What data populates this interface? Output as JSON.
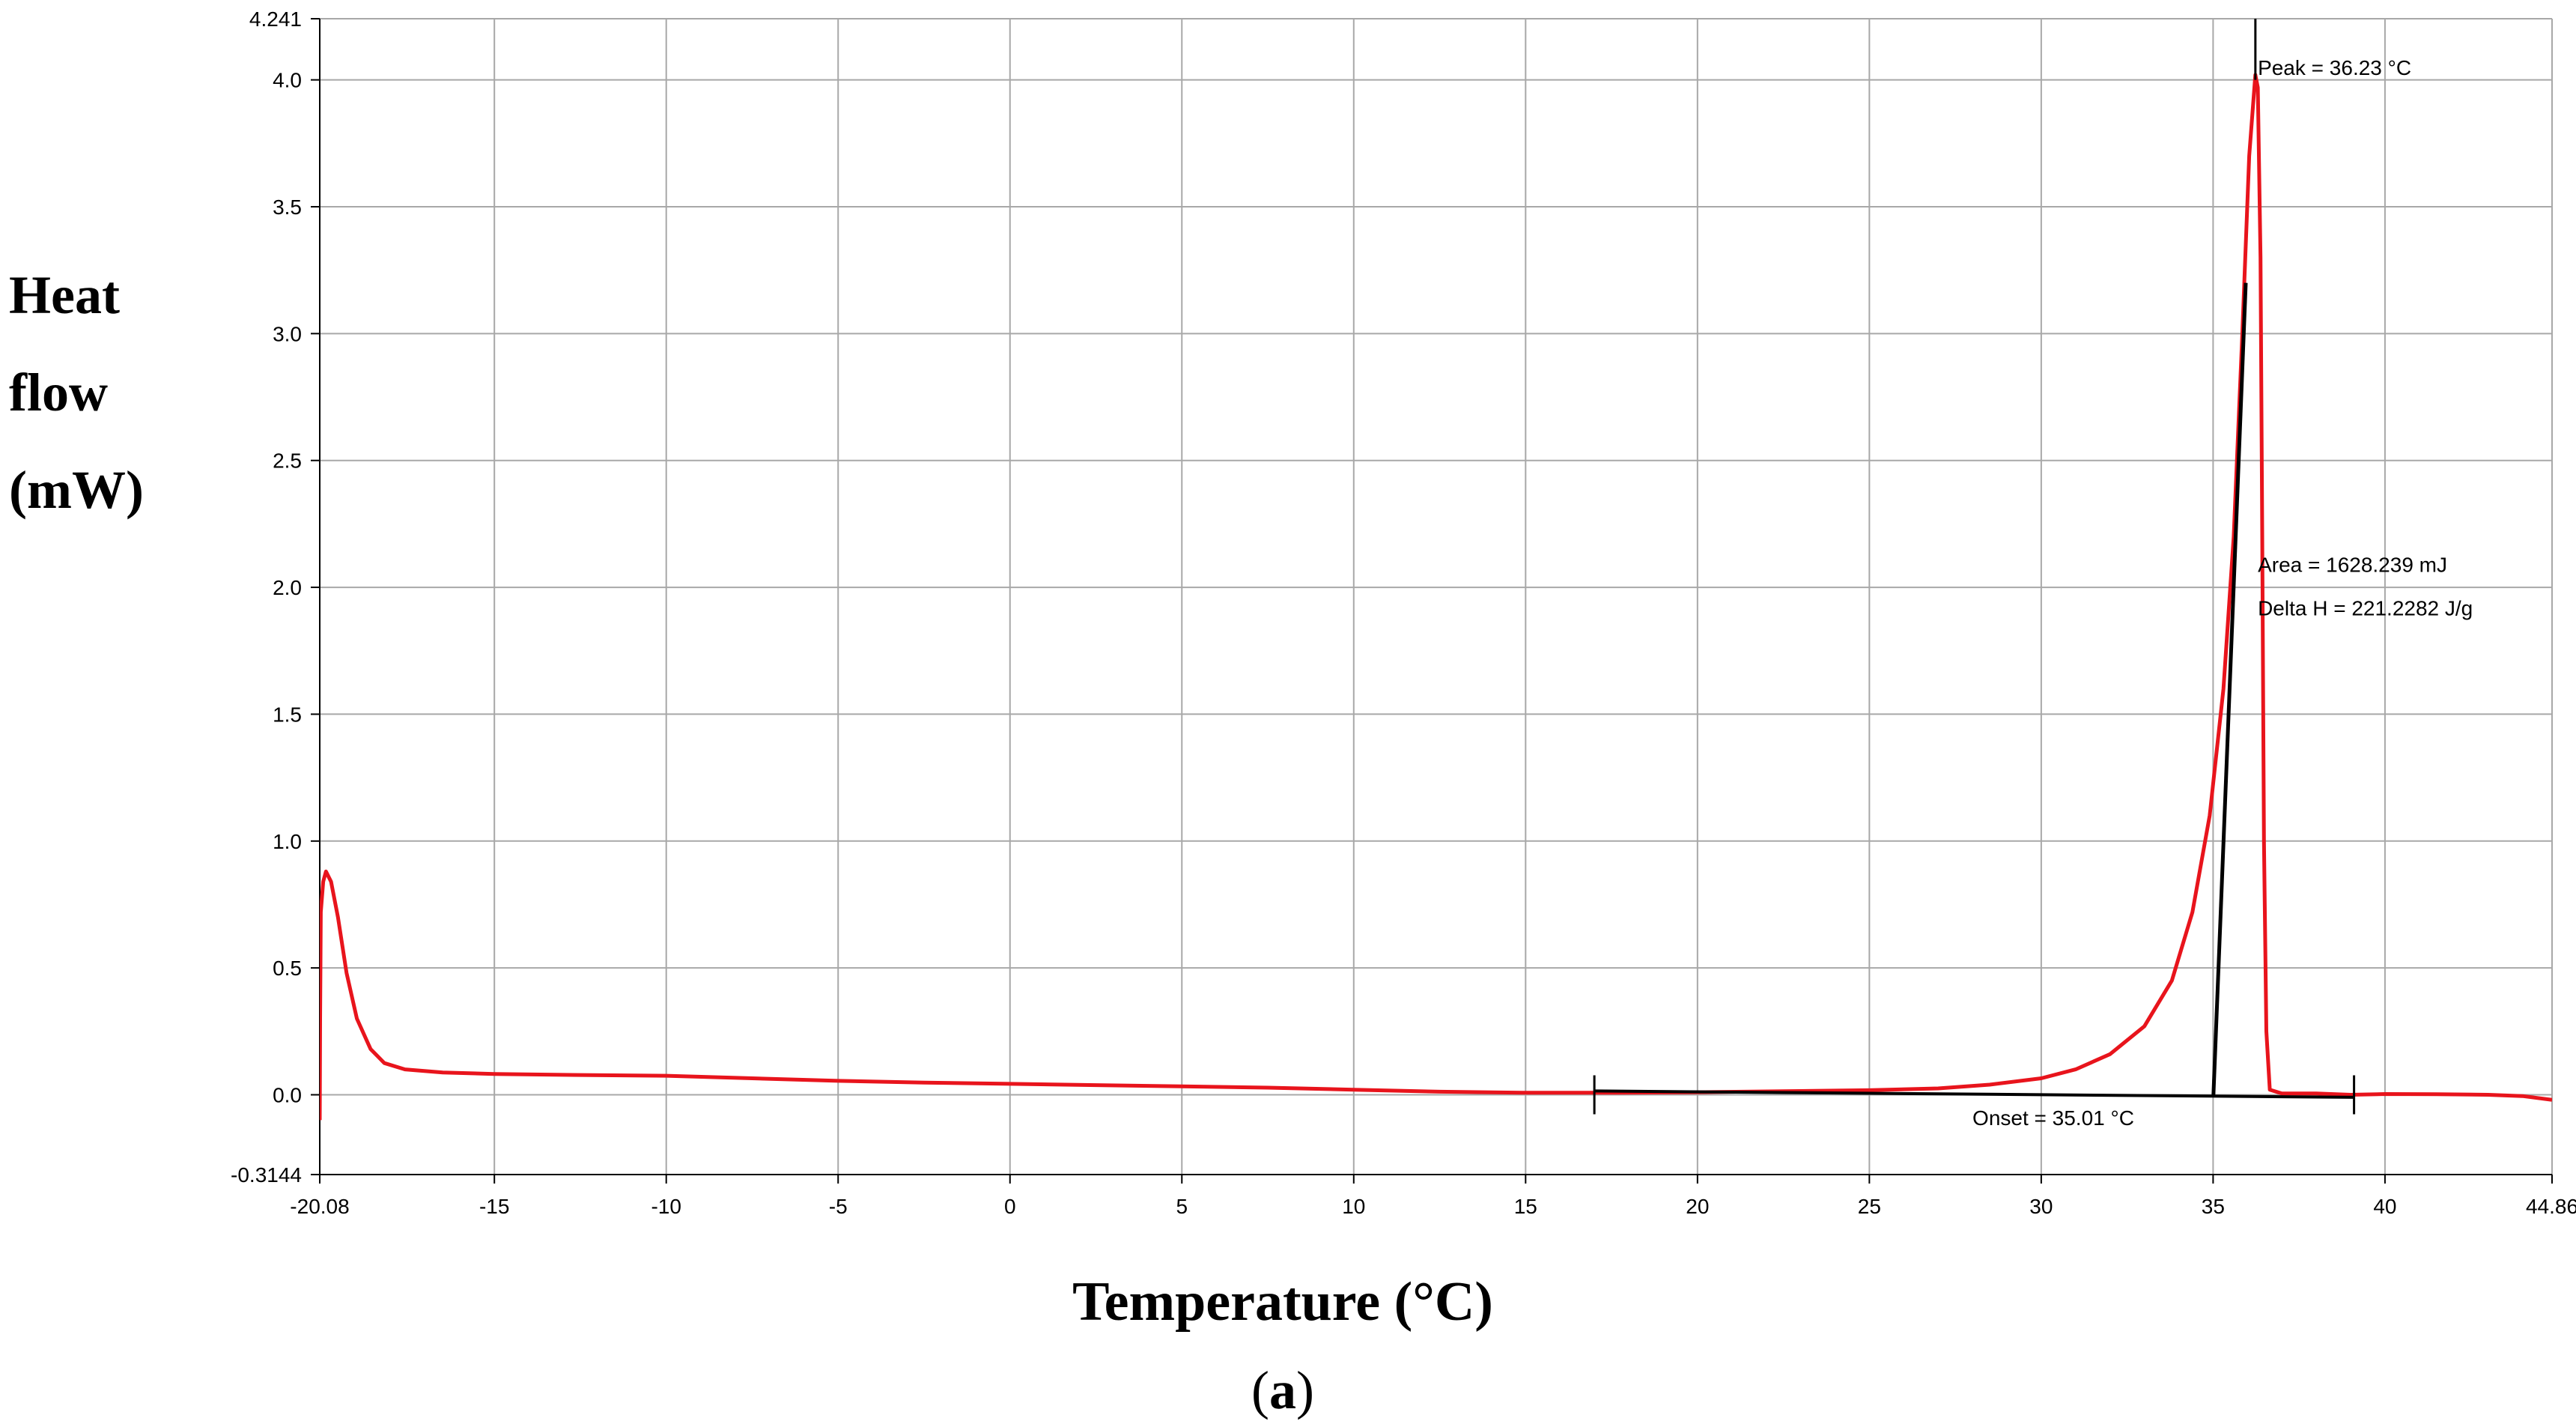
{
  "chart_data": {
    "type": "line",
    "title": "",
    "xlabel": "Temperature (°C)",
    "ylabel_lines": [
      "Heat",
      "flow",
      "(mW)"
    ],
    "caption": {
      "open": "(",
      "letter": "a",
      "close": ")"
    },
    "xlim": [
      -20.08,
      44.86
    ],
    "ylim": [
      -0.3144,
      4.241
    ],
    "grid": true,
    "x_ticks": [
      -20.08,
      -15,
      -10,
      -5,
      0,
      5,
      10,
      15,
      20,
      25,
      30,
      35,
      40,
      44.86
    ],
    "x_tick_labels": [
      "-20.08",
      "-15",
      "-10",
      "-5",
      "0",
      "5",
      "10",
      "15",
      "20",
      "25",
      "30",
      "35",
      "40",
      "44.86"
    ],
    "y_ticks": [
      -0.3144,
      0.0,
      0.5,
      1.0,
      1.5,
      2.0,
      2.5,
      3.0,
      3.5,
      4.0,
      4.241
    ],
    "y_tick_labels": [
      "-0.3144",
      "0.0",
      "0.5",
      "1.0",
      "1.5",
      "2.0",
      "2.5",
      "3.0",
      "3.5",
      "4.0",
      "4.241"
    ],
    "colors": {
      "curve": "#e8141c",
      "analysis": "#000000",
      "grid": "#a8a8a8",
      "axis": "#000000"
    },
    "series": [
      {
        "name": "",
        "color": "#e8141c",
        "points": [
          [
            -20.08,
            -0.1
          ],
          [
            -20.07,
            0.3
          ],
          [
            -20.05,
            0.72
          ],
          [
            -19.98,
            0.84
          ],
          [
            -19.9,
            0.88
          ],
          [
            -19.75,
            0.84
          ],
          [
            -19.55,
            0.7
          ],
          [
            -19.3,
            0.48
          ],
          [
            -19.0,
            0.3
          ],
          [
            -18.6,
            0.18
          ],
          [
            -18.2,
            0.125
          ],
          [
            -17.6,
            0.1
          ],
          [
            -16.5,
            0.088
          ],
          [
            -15.0,
            0.082
          ],
          [
            -12.5,
            0.078
          ],
          [
            -10.0,
            0.075
          ],
          [
            -7.5,
            0.065
          ],
          [
            -5.0,
            0.055
          ],
          [
            -2.5,
            0.048
          ],
          [
            0.0,
            0.043
          ],
          [
            2.5,
            0.038
          ],
          [
            5.0,
            0.033
          ],
          [
            7.5,
            0.028
          ],
          [
            10.0,
            0.02
          ],
          [
            12.5,
            0.012
          ],
          [
            15.0,
            0.008
          ],
          [
            17.5,
            0.008
          ],
          [
            20.0,
            0.01
          ],
          [
            22.5,
            0.014
          ],
          [
            25.0,
            0.018
          ],
          [
            27.0,
            0.025
          ],
          [
            28.5,
            0.04
          ],
          [
            30.0,
            0.065
          ],
          [
            31.0,
            0.1
          ],
          [
            32.0,
            0.16
          ],
          [
            33.0,
            0.27
          ],
          [
            33.8,
            0.45
          ],
          [
            34.4,
            0.72
          ],
          [
            34.9,
            1.1
          ],
          [
            35.3,
            1.6
          ],
          [
            35.6,
            2.2
          ],
          [
            35.85,
            3.0
          ],
          [
            36.05,
            3.7
          ],
          [
            36.23,
            4.02
          ],
          [
            36.3,
            3.97
          ],
          [
            36.38,
            3.3
          ],
          [
            36.43,
            2.2
          ],
          [
            36.48,
            1.0
          ],
          [
            36.55,
            0.25
          ],
          [
            36.65,
            0.02
          ],
          [
            37.0,
            0.005
          ],
          [
            38.0,
            0.005
          ],
          [
            39.0,
            0.0
          ],
          [
            40.0,
            0.003
          ],
          [
            41.5,
            0.002
          ],
          [
            43.0,
            0.0
          ],
          [
            44.0,
            -0.005
          ],
          [
            44.86,
            -0.02
          ]
        ]
      }
    ],
    "analysis": {
      "baseline": {
        "x1": 17.0,
        "y1": 0.015,
        "x2": 39.1,
        "y2": -0.01
      },
      "baseline_markers": [
        17.0,
        39.1
      ],
      "tangent": {
        "x1": 35.01,
        "y1": 0.0,
        "x2": 35.95,
        "y2": 3.2
      },
      "onset_drop": {
        "x": 35.01,
        "y1": 0.0,
        "y2": 0.06
      },
      "peak_marker": {
        "x": 36.23,
        "y1": 4.0,
        "y2": 4.241
      }
    },
    "annotations": [
      {
        "id": "peak",
        "text": "Peak = 36.23 °C",
        "x": 36.3,
        "y": 4.02
      },
      {
        "id": "area",
        "text": "Area = 1628.239 mJ",
        "x": 36.3,
        "y": 2.06
      },
      {
        "id": "deltah",
        "text": "Delta H = 221.2282 J/g",
        "x": 36.3,
        "y": 1.89
      },
      {
        "id": "onset",
        "text": "Onset = 35.01 °C",
        "x": 28.0,
        "y": -0.12
      }
    ]
  }
}
